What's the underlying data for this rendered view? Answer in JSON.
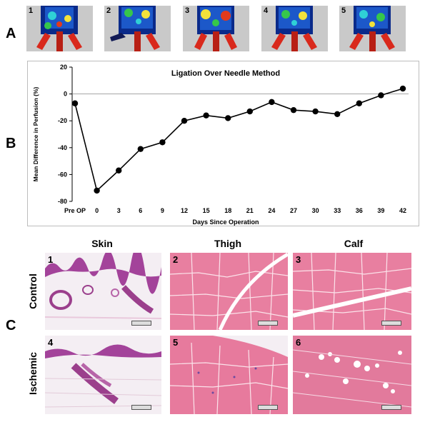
{
  "panels": {
    "a_label": "A",
    "b_label": "B",
    "c_label": "C"
  },
  "perfusion_images": [
    {
      "label": "1"
    },
    {
      "label": "2"
    },
    {
      "label": "3"
    },
    {
      "label": "4"
    },
    {
      "label": "5"
    }
  ],
  "chart_data": {
    "type": "line",
    "title": "Ligation Over Needle Method",
    "xlabel": "Days Since Operation",
    "ylabel": "Mean Difference in Perfusion (%)",
    "categories": [
      "Pre OP",
      "0",
      "3",
      "6",
      "9",
      "12",
      "15",
      "18",
      "21",
      "24",
      "27",
      "30",
      "33",
      "36",
      "39",
      "42"
    ],
    "values": [
      -7,
      -72,
      -57,
      -41,
      -36,
      -20,
      -16,
      -18,
      -13,
      -6,
      -12,
      -13,
      -15,
      -7,
      -1,
      4
    ],
    "yticks": [
      20,
      0,
      -20,
      -40,
      -60,
      -80
    ],
    "ylim": [
      -80,
      20
    ],
    "reference_line": 0,
    "grid": false,
    "legend": "none",
    "marker_color": "#000000",
    "line_color": "#000000"
  },
  "histology": {
    "columns": [
      "Skin",
      "Thigh",
      "Calf"
    ],
    "rows": [
      "Control",
      "Ischemic"
    ],
    "images": [
      {
        "label": "1"
      },
      {
        "label": "2"
      },
      {
        "label": "3"
      },
      {
        "label": "4"
      },
      {
        "label": "5"
      },
      {
        "label": "6"
      }
    ],
    "colors": {
      "stain_pink": "#e88aa6",
      "stain_purple": "#9b3f8c",
      "background": "#f7eef2"
    }
  }
}
